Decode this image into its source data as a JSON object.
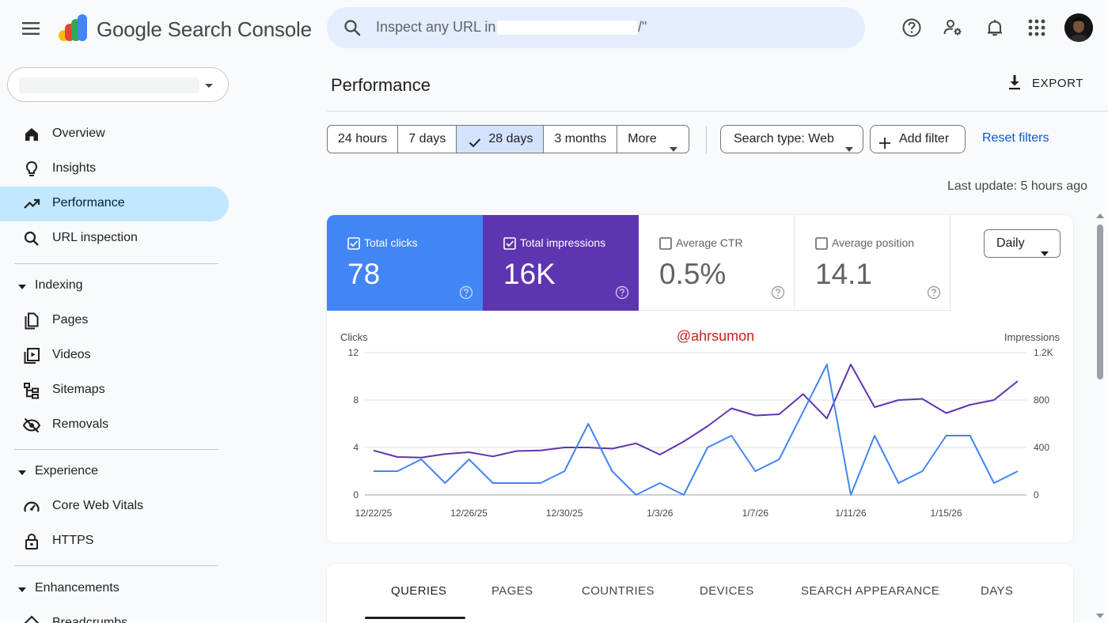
{
  "header": {
    "product_name": "Google Search Console",
    "search_placeholder_prefix": "Inspect any URL in \"",
    "search_placeholder_suffix": "/\""
  },
  "sidebar": {
    "nav": [
      {
        "label": "Overview",
        "icon": "home-icon"
      },
      {
        "label": "Insights",
        "icon": "lightbulb-icon"
      },
      {
        "label": "Performance",
        "icon": "trending-up-icon",
        "active": true
      },
      {
        "label": "URL inspection",
        "icon": "search-icon"
      }
    ],
    "sections": [
      {
        "title": "Indexing",
        "items": [
          {
            "label": "Pages",
            "icon": "pages-icon"
          },
          {
            "label": "Videos",
            "icon": "video-icon"
          },
          {
            "label": "Sitemaps",
            "icon": "sitemap-icon"
          },
          {
            "label": "Removals",
            "icon": "eye-off-icon"
          }
        ]
      },
      {
        "title": "Experience",
        "items": [
          {
            "label": "Core Web Vitals",
            "icon": "gauge-icon"
          },
          {
            "label": "HTTPS",
            "icon": "lock-icon"
          }
        ]
      },
      {
        "title": "Enhancements",
        "items": [
          {
            "label": "Breadcrumbs",
            "icon": "diamond-icon"
          }
        ]
      }
    ]
  },
  "main": {
    "title": "Performance",
    "export_label": "EXPORT",
    "date_ranges": [
      "24 hours",
      "7 days",
      "28 days",
      "3 months",
      "More"
    ],
    "selected_range": "28 days",
    "search_type_label": "Search type: Web",
    "add_filter_label": "Add filter",
    "reset_label": "Reset filters",
    "last_update": "Last update: 5 hours ago",
    "metrics": [
      {
        "label": "Total clicks",
        "value": "78",
        "checked": true,
        "color": "#4285f4"
      },
      {
        "label": "Total impressions",
        "value": "16K",
        "checked": true,
        "color": "#5e35b1"
      },
      {
        "label": "Average CTR",
        "value": "0.5%",
        "checked": false
      },
      {
        "label": "Average position",
        "value": "14.1",
        "checked": false
      }
    ],
    "granularity": "Daily",
    "watermark": "@ahrsumon",
    "tabs": [
      "QUERIES",
      "PAGES",
      "COUNTRIES",
      "DEVICES",
      "SEARCH APPEARANCE",
      "DAYS"
    ],
    "active_tab": "QUERIES"
  },
  "chart_data": {
    "type": "line",
    "y_left_label": "Clicks",
    "y_right_label": "Impressions",
    "y_left_ticks": [
      "0",
      "4",
      "8",
      "12"
    ],
    "y_right_ticks": [
      "0",
      "400",
      "800",
      "1.2K"
    ],
    "ylim_left": [
      0,
      12
    ],
    "ylim_right": [
      0,
      1200
    ],
    "x_tick_labels": [
      "12/22/25",
      "12/26/25",
      "12/30/25",
      "1/3/26",
      "1/7/26",
      "1/11/26",
      "1/15/26"
    ],
    "x": [
      "12/22/25",
      "12/23/25",
      "12/24/25",
      "12/25/25",
      "12/26/25",
      "12/27/25",
      "12/28/25",
      "12/29/25",
      "12/30/25",
      "12/31/25",
      "1/1/26",
      "1/2/26",
      "1/3/26",
      "1/4/26",
      "1/5/26",
      "1/6/26",
      "1/7/26",
      "1/8/26",
      "1/9/26",
      "1/10/26",
      "1/11/26",
      "1/12/26",
      "1/13/26",
      "1/14/26",
      "1/15/26",
      "1/16/26",
      "1/17/26",
      "1/18/26"
    ],
    "series": [
      {
        "name": "Clicks",
        "axis": "left",
        "color": "#4285f4",
        "values": [
          2,
          2,
          3,
          1,
          3,
          1,
          1,
          1,
          2,
          6,
          2,
          0,
          1,
          0,
          4,
          5,
          2,
          3,
          7,
          11,
          0,
          5,
          1,
          2,
          5,
          5,
          1,
          2
        ]
      },
      {
        "name": "Impressions",
        "axis": "right",
        "color": "#5e35b1",
        "values": [
          375,
          320,
          315,
          345,
          360,
          325,
          370,
          375,
          400,
          400,
          390,
          435,
          340,
          450,
          580,
          730,
          670,
          680,
          850,
          645,
          1100,
          740,
          800,
          810,
          690,
          760,
          800,
          960
        ]
      }
    ],
    "grid": true
  }
}
